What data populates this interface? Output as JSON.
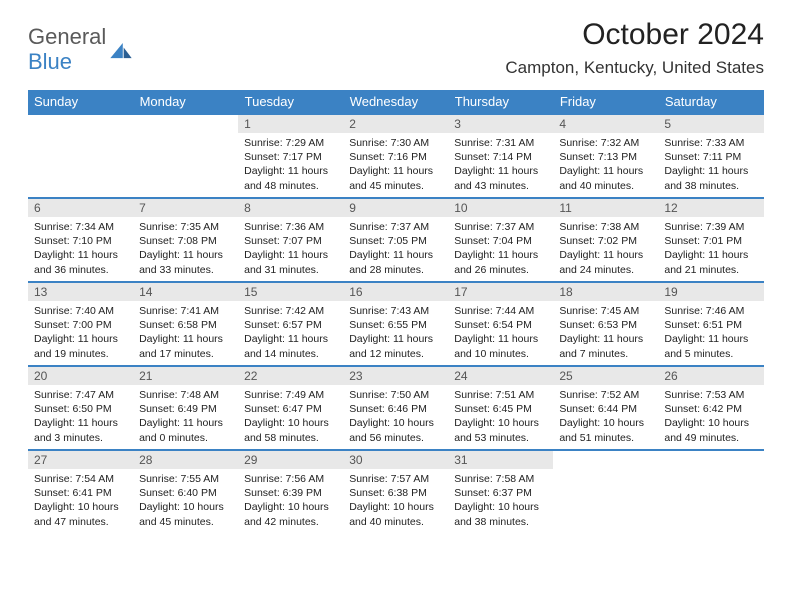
{
  "logo": {
    "line1": "General",
    "line2": "Blue"
  },
  "title": "October 2024",
  "location": "Campton, Kentucky, United States",
  "colors": {
    "header_bg": "#3b82c4",
    "header_text": "#ffffff",
    "rule": "#3b82c4",
    "daynum_bg": "#e8e8e8",
    "body_text": "#222222",
    "logo_gray": "#5a5a5a",
    "logo_blue": "#3b82c4"
  },
  "day_names": [
    "Sunday",
    "Monday",
    "Tuesday",
    "Wednesday",
    "Thursday",
    "Friday",
    "Saturday"
  ],
  "weeks": [
    [
      null,
      null,
      {
        "n": "1",
        "sr": "Sunrise: 7:29 AM",
        "ss": "Sunset: 7:17 PM",
        "dl1": "Daylight: 11 hours",
        "dl2": "and 48 minutes."
      },
      {
        "n": "2",
        "sr": "Sunrise: 7:30 AM",
        "ss": "Sunset: 7:16 PM",
        "dl1": "Daylight: 11 hours",
        "dl2": "and 45 minutes."
      },
      {
        "n": "3",
        "sr": "Sunrise: 7:31 AM",
        "ss": "Sunset: 7:14 PM",
        "dl1": "Daylight: 11 hours",
        "dl2": "and 43 minutes."
      },
      {
        "n": "4",
        "sr": "Sunrise: 7:32 AM",
        "ss": "Sunset: 7:13 PM",
        "dl1": "Daylight: 11 hours",
        "dl2": "and 40 minutes."
      },
      {
        "n": "5",
        "sr": "Sunrise: 7:33 AM",
        "ss": "Sunset: 7:11 PM",
        "dl1": "Daylight: 11 hours",
        "dl2": "and 38 minutes."
      }
    ],
    [
      {
        "n": "6",
        "sr": "Sunrise: 7:34 AM",
        "ss": "Sunset: 7:10 PM",
        "dl1": "Daylight: 11 hours",
        "dl2": "and 36 minutes."
      },
      {
        "n": "7",
        "sr": "Sunrise: 7:35 AM",
        "ss": "Sunset: 7:08 PM",
        "dl1": "Daylight: 11 hours",
        "dl2": "and 33 minutes."
      },
      {
        "n": "8",
        "sr": "Sunrise: 7:36 AM",
        "ss": "Sunset: 7:07 PM",
        "dl1": "Daylight: 11 hours",
        "dl2": "and 31 minutes."
      },
      {
        "n": "9",
        "sr": "Sunrise: 7:37 AM",
        "ss": "Sunset: 7:05 PM",
        "dl1": "Daylight: 11 hours",
        "dl2": "and 28 minutes."
      },
      {
        "n": "10",
        "sr": "Sunrise: 7:37 AM",
        "ss": "Sunset: 7:04 PM",
        "dl1": "Daylight: 11 hours",
        "dl2": "and 26 minutes."
      },
      {
        "n": "11",
        "sr": "Sunrise: 7:38 AM",
        "ss": "Sunset: 7:02 PM",
        "dl1": "Daylight: 11 hours",
        "dl2": "and 24 minutes."
      },
      {
        "n": "12",
        "sr": "Sunrise: 7:39 AM",
        "ss": "Sunset: 7:01 PM",
        "dl1": "Daylight: 11 hours",
        "dl2": "and 21 minutes."
      }
    ],
    [
      {
        "n": "13",
        "sr": "Sunrise: 7:40 AM",
        "ss": "Sunset: 7:00 PM",
        "dl1": "Daylight: 11 hours",
        "dl2": "and 19 minutes."
      },
      {
        "n": "14",
        "sr": "Sunrise: 7:41 AM",
        "ss": "Sunset: 6:58 PM",
        "dl1": "Daylight: 11 hours",
        "dl2": "and 17 minutes."
      },
      {
        "n": "15",
        "sr": "Sunrise: 7:42 AM",
        "ss": "Sunset: 6:57 PM",
        "dl1": "Daylight: 11 hours",
        "dl2": "and 14 minutes."
      },
      {
        "n": "16",
        "sr": "Sunrise: 7:43 AM",
        "ss": "Sunset: 6:55 PM",
        "dl1": "Daylight: 11 hours",
        "dl2": "and 12 minutes."
      },
      {
        "n": "17",
        "sr": "Sunrise: 7:44 AM",
        "ss": "Sunset: 6:54 PM",
        "dl1": "Daylight: 11 hours",
        "dl2": "and 10 minutes."
      },
      {
        "n": "18",
        "sr": "Sunrise: 7:45 AM",
        "ss": "Sunset: 6:53 PM",
        "dl1": "Daylight: 11 hours",
        "dl2": "and 7 minutes."
      },
      {
        "n": "19",
        "sr": "Sunrise: 7:46 AM",
        "ss": "Sunset: 6:51 PM",
        "dl1": "Daylight: 11 hours",
        "dl2": "and 5 minutes."
      }
    ],
    [
      {
        "n": "20",
        "sr": "Sunrise: 7:47 AM",
        "ss": "Sunset: 6:50 PM",
        "dl1": "Daylight: 11 hours",
        "dl2": "and 3 minutes."
      },
      {
        "n": "21",
        "sr": "Sunrise: 7:48 AM",
        "ss": "Sunset: 6:49 PM",
        "dl1": "Daylight: 11 hours",
        "dl2": "and 0 minutes."
      },
      {
        "n": "22",
        "sr": "Sunrise: 7:49 AM",
        "ss": "Sunset: 6:47 PM",
        "dl1": "Daylight: 10 hours",
        "dl2": "and 58 minutes."
      },
      {
        "n": "23",
        "sr": "Sunrise: 7:50 AM",
        "ss": "Sunset: 6:46 PM",
        "dl1": "Daylight: 10 hours",
        "dl2": "and 56 minutes."
      },
      {
        "n": "24",
        "sr": "Sunrise: 7:51 AM",
        "ss": "Sunset: 6:45 PM",
        "dl1": "Daylight: 10 hours",
        "dl2": "and 53 minutes."
      },
      {
        "n": "25",
        "sr": "Sunrise: 7:52 AM",
        "ss": "Sunset: 6:44 PM",
        "dl1": "Daylight: 10 hours",
        "dl2": "and 51 minutes."
      },
      {
        "n": "26",
        "sr": "Sunrise: 7:53 AM",
        "ss": "Sunset: 6:42 PM",
        "dl1": "Daylight: 10 hours",
        "dl2": "and 49 minutes."
      }
    ],
    [
      {
        "n": "27",
        "sr": "Sunrise: 7:54 AM",
        "ss": "Sunset: 6:41 PM",
        "dl1": "Daylight: 10 hours",
        "dl2": "and 47 minutes."
      },
      {
        "n": "28",
        "sr": "Sunrise: 7:55 AM",
        "ss": "Sunset: 6:40 PM",
        "dl1": "Daylight: 10 hours",
        "dl2": "and 45 minutes."
      },
      {
        "n": "29",
        "sr": "Sunrise: 7:56 AM",
        "ss": "Sunset: 6:39 PM",
        "dl1": "Daylight: 10 hours",
        "dl2": "and 42 minutes."
      },
      {
        "n": "30",
        "sr": "Sunrise: 7:57 AM",
        "ss": "Sunset: 6:38 PM",
        "dl1": "Daylight: 10 hours",
        "dl2": "and 40 minutes."
      },
      {
        "n": "31",
        "sr": "Sunrise: 7:58 AM",
        "ss": "Sunset: 6:37 PM",
        "dl1": "Daylight: 10 hours",
        "dl2": "and 38 minutes."
      },
      null,
      null
    ]
  ]
}
